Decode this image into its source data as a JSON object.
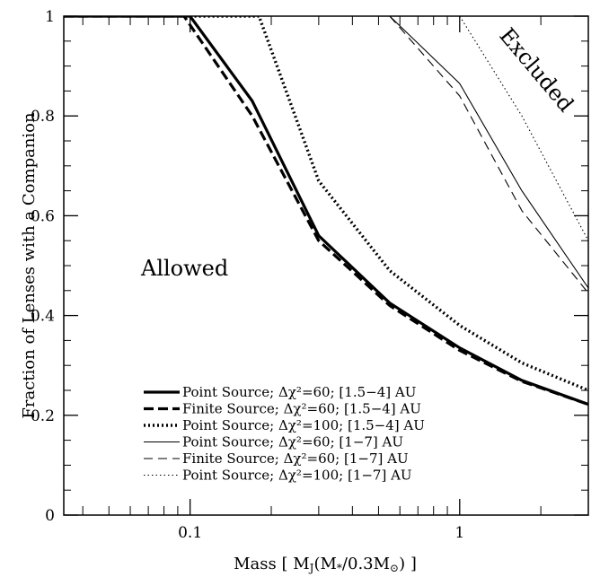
{
  "chart_data": {
    "type": "line",
    "xlabel": "Mass [ M_J(M_*/0.3M_⊙) ]",
    "ylabel": "Fraction of Lenses with a Companion",
    "x_scale": "log",
    "xlim": [
      0.034,
      3.0
    ],
    "ylim": [
      0,
      1
    ],
    "x_ticks": [
      {
        "value": 0.1,
        "label": "0.1"
      },
      {
        "value": 1,
        "label": "1"
      }
    ],
    "y_ticks": [
      {
        "value": 0,
        "label": "0"
      },
      {
        "value": 0.2,
        "label": "0.2"
      },
      {
        "value": 0.4,
        "label": "0.4"
      },
      {
        "value": 0.6,
        "label": "0.6"
      },
      {
        "value": 0.8,
        "label": "0.8"
      },
      {
        "value": 1,
        "label": "1"
      }
    ],
    "annotations": [
      {
        "text": "Allowed"
      },
      {
        "text": "Excluded"
      }
    ],
    "legend_position": "bottom-center",
    "series": [
      {
        "name": "Point Source; Δχ²=60; [1.5−4] AU",
        "style": "thick-solid",
        "x": [
          0.034,
          0.1,
          0.17,
          0.3,
          0.55,
          1.0,
          1.7,
          3.0
        ],
        "y": [
          1.0,
          1.0,
          0.83,
          0.56,
          0.425,
          0.335,
          0.27,
          0.222
        ]
      },
      {
        "name": "Finite Source; Δχ²=60; [1.5−4] AU",
        "style": "thick-dashed",
        "x": [
          0.034,
          0.095,
          0.17,
          0.3,
          0.55,
          1.0,
          1.7,
          3.0
        ],
        "y": [
          1.0,
          1.0,
          0.8,
          0.55,
          0.42,
          0.33,
          0.268,
          0.222
        ]
      },
      {
        "name": "Point Source; Δχ²=100; [1.5−4] AU",
        "style": "thick-dotted",
        "x": [
          0.1,
          0.18,
          0.3,
          0.55,
          1.0,
          1.7,
          3.0
        ],
        "y": [
          1.0,
          1.0,
          0.67,
          0.49,
          0.38,
          0.305,
          0.25
        ]
      },
      {
        "name": "Point Source; Δχ²=60; [1−7] AU",
        "style": "thin-solid",
        "x": [
          0.55,
          1.0,
          1.7,
          3.0
        ],
        "y": [
          1.0,
          0.865,
          0.65,
          0.455
        ]
      },
      {
        "name": "Finite Source; Δχ²=60; [1−7] AU",
        "style": "thin-dashed",
        "x": [
          0.55,
          1.0,
          1.7,
          3.0
        ],
        "y": [
          1.0,
          0.84,
          0.61,
          0.445
        ]
      },
      {
        "name": "Point Source; Δχ²=100; [1−7] AU",
        "style": "thin-dotted",
        "x": [
          1.0,
          1.7,
          3.0
        ],
        "y": [
          1.0,
          0.8,
          0.55
        ]
      }
    ]
  }
}
